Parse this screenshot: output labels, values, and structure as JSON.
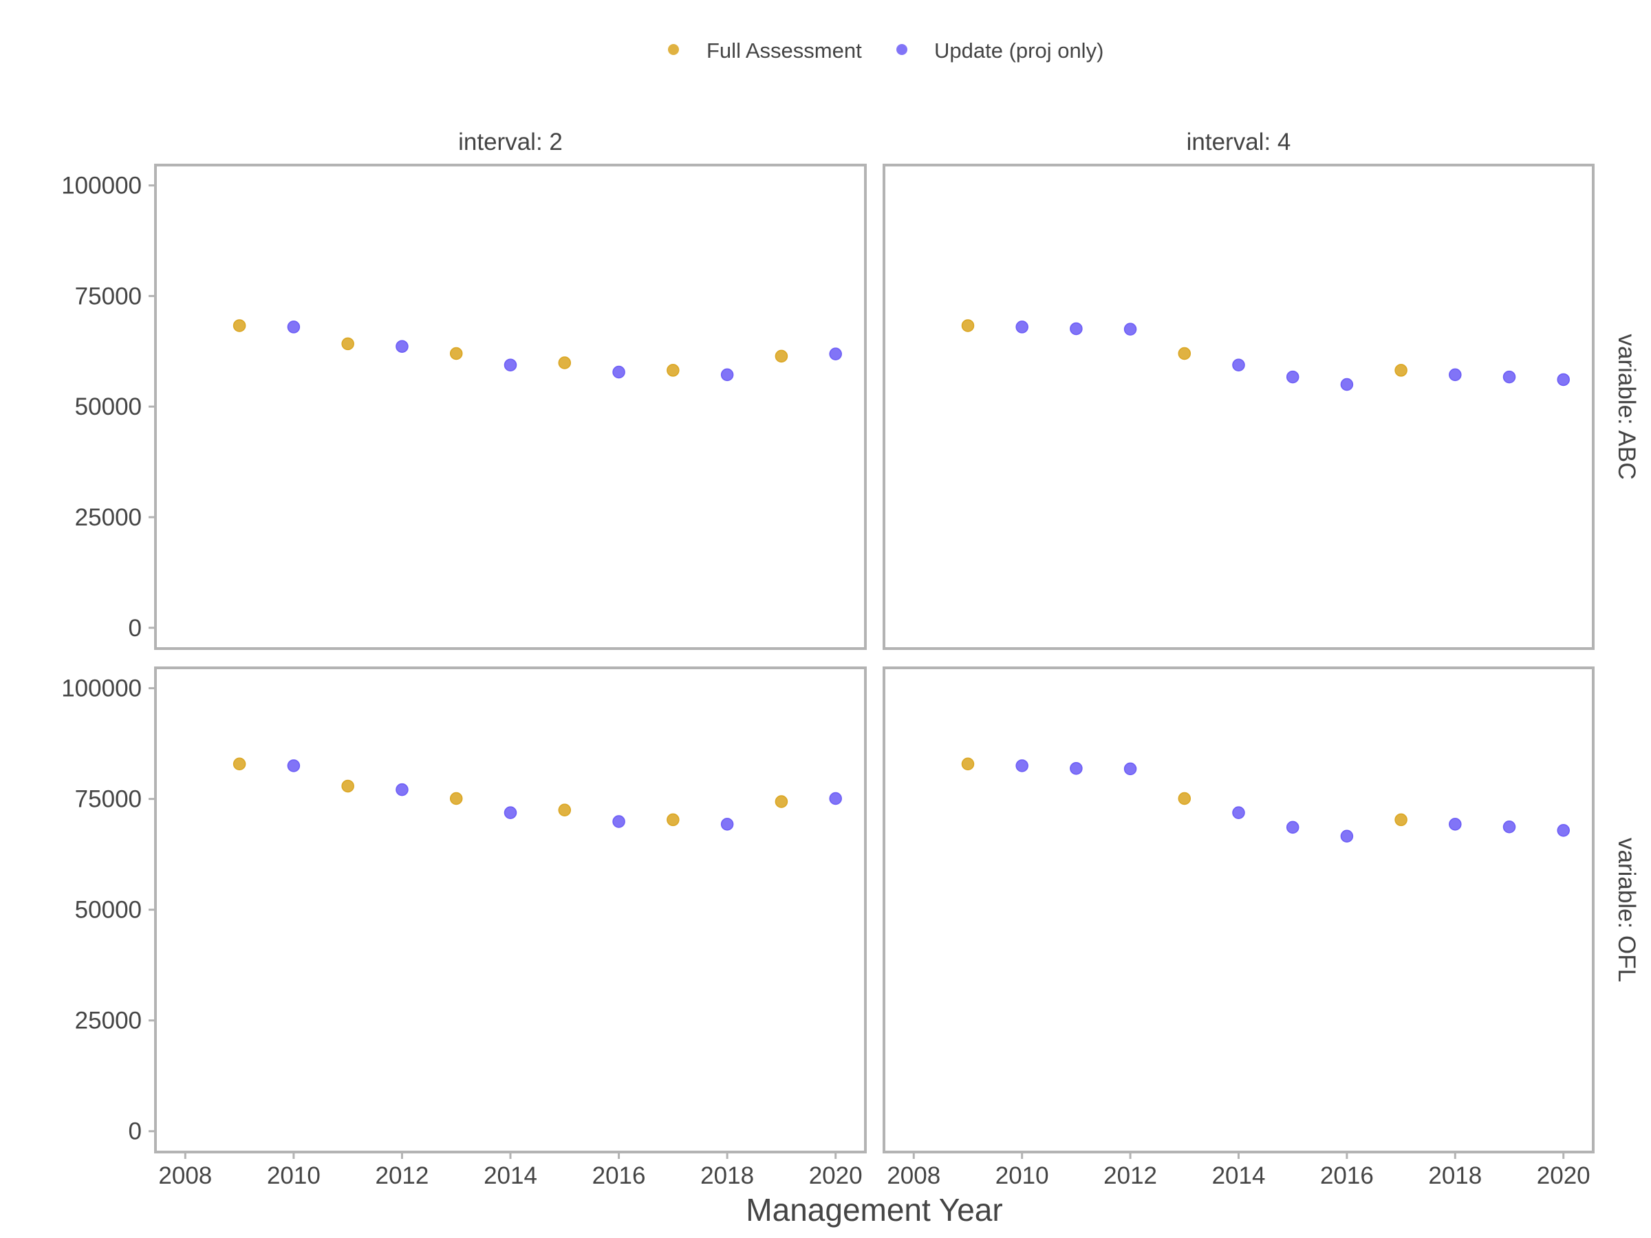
{
  "chart_data": {
    "type": "scatter",
    "xlabel": "Management Year",
    "ylabel": "",
    "legend": {
      "position": "top",
      "entries": [
        {
          "label": "Full Assessment",
          "color": "#DAA520"
        },
        {
          "label": "Update (proj only)",
          "color": "#6B5CF6"
        }
      ]
    },
    "x_ticks": [
      2008,
      2010,
      2012,
      2014,
      2016,
      2018,
      2020
    ],
    "y_ticks": [
      0,
      25000,
      50000,
      75000,
      100000
    ],
    "xlim": [
      2007.45,
      2020.55
    ],
    "ylim": [
      -4700,
      104600
    ],
    "grid": false,
    "colors": {
      "Full Assessment": "#DAA520",
      "Update (proj only)": "#6B5CF6",
      "panel_border": "#B3B3B3",
      "text": "#444444"
    },
    "column_labels": [
      "interval: 2",
      "interval: 4"
    ],
    "row_labels": [
      "variable: ABC",
      "variable: OFL"
    ],
    "panels": [
      {
        "column": "interval: 2",
        "row": "variable: ABC",
        "points": [
          {
            "x": 2009,
            "y": 68300,
            "type": "Full Assessment"
          },
          {
            "x": 2010,
            "y": 68000,
            "type": "Update (proj only)"
          },
          {
            "x": 2011,
            "y": 64200,
            "type": "Full Assessment"
          },
          {
            "x": 2012,
            "y": 63600,
            "type": "Update (proj only)"
          },
          {
            "x": 2013,
            "y": 62000,
            "type": "Full Assessment"
          },
          {
            "x": 2014,
            "y": 59400,
            "type": "Update (proj only)"
          },
          {
            "x": 2015,
            "y": 59900,
            "type": "Full Assessment"
          },
          {
            "x": 2016,
            "y": 57800,
            "type": "Update (proj only)"
          },
          {
            "x": 2017,
            "y": 58200,
            "type": "Full Assessment"
          },
          {
            "x": 2018,
            "y": 57200,
            "type": "Update (proj only)"
          },
          {
            "x": 2019,
            "y": 61400,
            "type": "Full Assessment"
          },
          {
            "x": 2020,
            "y": 61900,
            "type": "Update (proj only)"
          }
        ]
      },
      {
        "column": "interval: 4",
        "row": "variable: ABC",
        "points": [
          {
            "x": 2009,
            "y": 68300,
            "type": "Full Assessment"
          },
          {
            "x": 2010,
            "y": 68000,
            "type": "Update (proj only)"
          },
          {
            "x": 2011,
            "y": 67600,
            "type": "Update (proj only)"
          },
          {
            "x": 2012,
            "y": 67500,
            "type": "Update (proj only)"
          },
          {
            "x": 2013,
            "y": 62000,
            "type": "Full Assessment"
          },
          {
            "x": 2014,
            "y": 59400,
            "type": "Update (proj only)"
          },
          {
            "x": 2015,
            "y": 56700,
            "type": "Update (proj only)"
          },
          {
            "x": 2016,
            "y": 55000,
            "type": "Update (proj only)"
          },
          {
            "x": 2017,
            "y": 58200,
            "type": "Full Assessment"
          },
          {
            "x": 2018,
            "y": 57200,
            "type": "Update (proj only)"
          },
          {
            "x": 2019,
            "y": 56700,
            "type": "Update (proj only)"
          },
          {
            "x": 2020,
            "y": 56100,
            "type": "Update (proj only)"
          }
        ]
      },
      {
        "column": "interval: 2",
        "row": "variable: OFL",
        "points": [
          {
            "x": 2009,
            "y": 82900,
            "type": "Full Assessment"
          },
          {
            "x": 2010,
            "y": 82500,
            "type": "Update (proj only)"
          },
          {
            "x": 2011,
            "y": 77900,
            "type": "Full Assessment"
          },
          {
            "x": 2012,
            "y": 77100,
            "type": "Update (proj only)"
          },
          {
            "x": 2013,
            "y": 75100,
            "type": "Full Assessment"
          },
          {
            "x": 2014,
            "y": 71900,
            "type": "Update (proj only)"
          },
          {
            "x": 2015,
            "y": 72500,
            "type": "Full Assessment"
          },
          {
            "x": 2016,
            "y": 69900,
            "type": "Update (proj only)"
          },
          {
            "x": 2017,
            "y": 70300,
            "type": "Full Assessment"
          },
          {
            "x": 2018,
            "y": 69300,
            "type": "Update (proj only)"
          },
          {
            "x": 2019,
            "y": 74400,
            "type": "Full Assessment"
          },
          {
            "x": 2020,
            "y": 75100,
            "type": "Update (proj only)"
          }
        ]
      },
      {
        "column": "interval: 4",
        "row": "variable: OFL",
        "points": [
          {
            "x": 2009,
            "y": 82900,
            "type": "Full Assessment"
          },
          {
            "x": 2010,
            "y": 82500,
            "type": "Update (proj only)"
          },
          {
            "x": 2011,
            "y": 81900,
            "type": "Update (proj only)"
          },
          {
            "x": 2012,
            "y": 81800,
            "type": "Update (proj only)"
          },
          {
            "x": 2013,
            "y": 75100,
            "type": "Full Assessment"
          },
          {
            "x": 2014,
            "y": 71900,
            "type": "Update (proj only)"
          },
          {
            "x": 2015,
            "y": 68600,
            "type": "Update (proj only)"
          },
          {
            "x": 2016,
            "y": 66600,
            "type": "Update (proj only)"
          },
          {
            "x": 2017,
            "y": 70300,
            "type": "Full Assessment"
          },
          {
            "x": 2018,
            "y": 69300,
            "type": "Update (proj only)"
          },
          {
            "x": 2019,
            "y": 68700,
            "type": "Update (proj only)"
          },
          {
            "x": 2020,
            "y": 67900,
            "type": "Update (proj only)"
          }
        ]
      }
    ]
  }
}
